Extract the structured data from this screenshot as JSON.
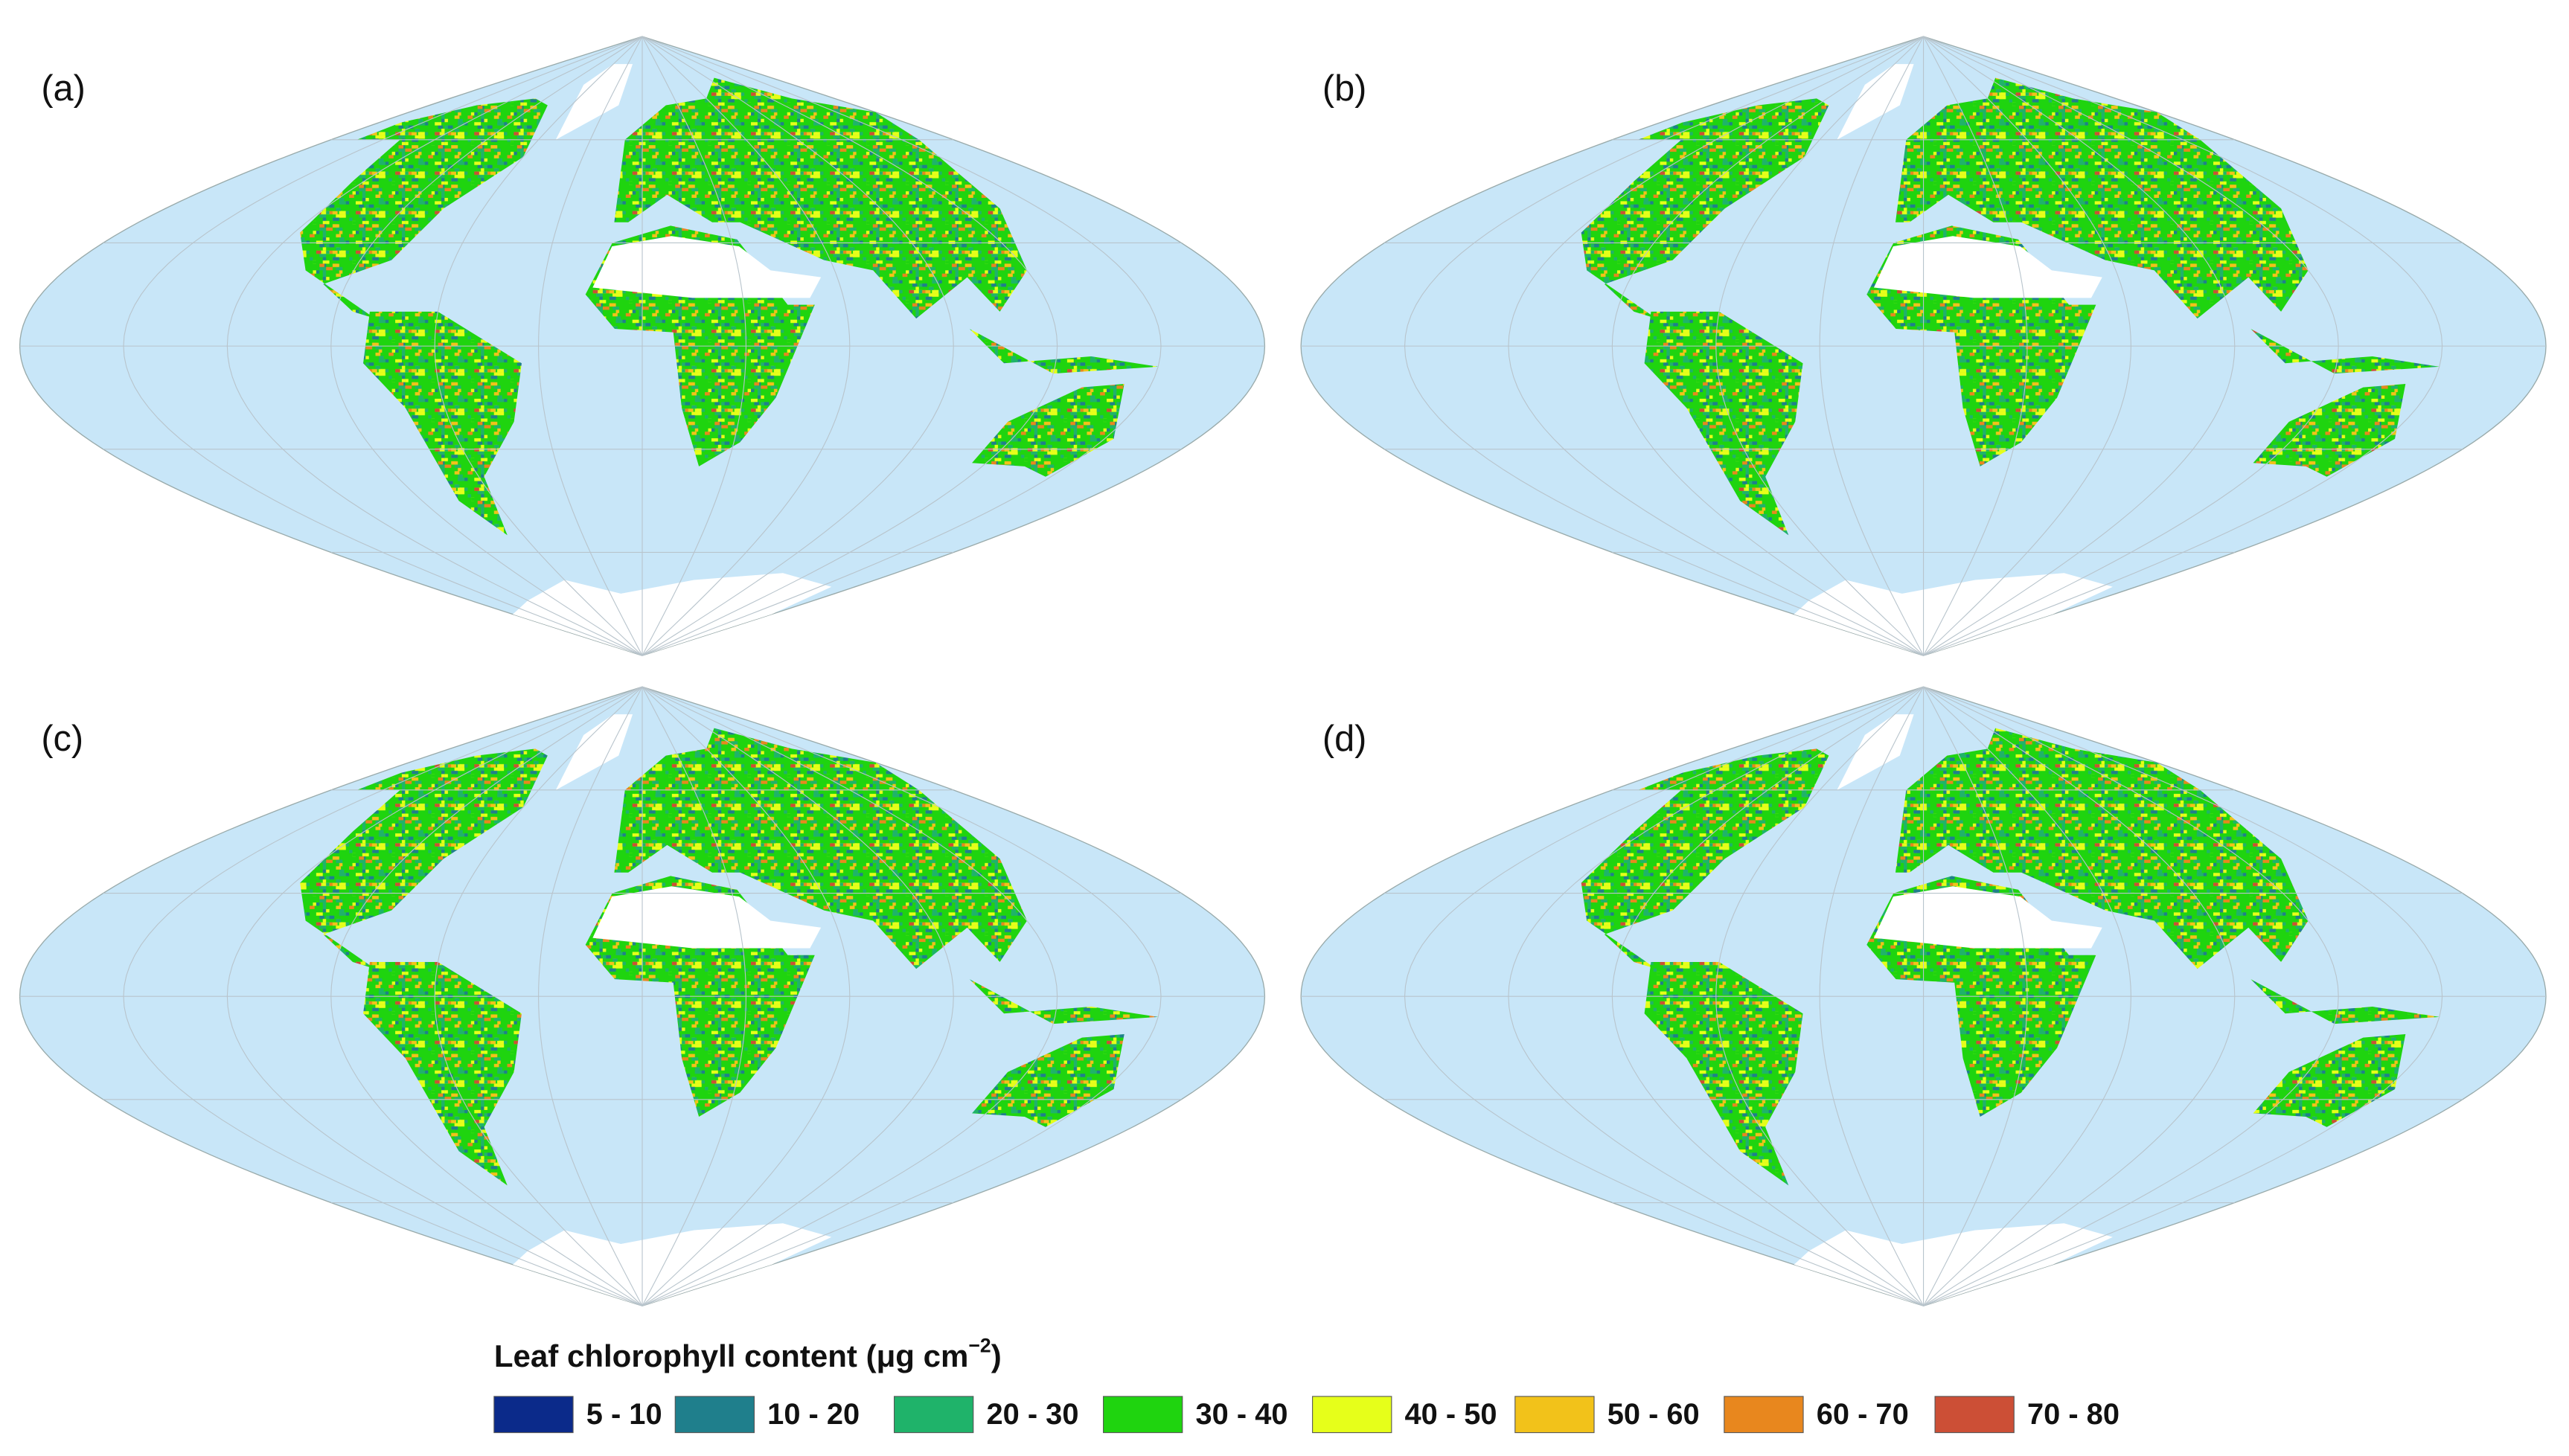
{
  "panels": [
    {
      "label": "(a)"
    },
    {
      "label": "(b)"
    },
    {
      "label": "(c)"
    },
    {
      "label": "(d)"
    }
  ],
  "legend": {
    "title": {
      "text": "Leaf chlorophyll content (μg cm",
      "superscript": "−2",
      "suffix": ")"
    },
    "items": [
      {
        "label": "5 - 10",
        "color": "#0b2a8a"
      },
      {
        "label": "10 - 20",
        "color": "#1f7f8c"
      },
      {
        "label": "20 - 30",
        "color": "#1fb36a"
      },
      {
        "label": "30 - 40",
        "color": "#1fd40f"
      },
      {
        "label": "40 - 50",
        "color": "#e6ff1a"
      },
      {
        "label": "50 - 60",
        "color": "#f2c21a"
      },
      {
        "label": "60 - 70",
        "color": "#e8871e"
      },
      {
        "label": "70 - 80",
        "color": "#cc4f36"
      }
    ]
  }
}
